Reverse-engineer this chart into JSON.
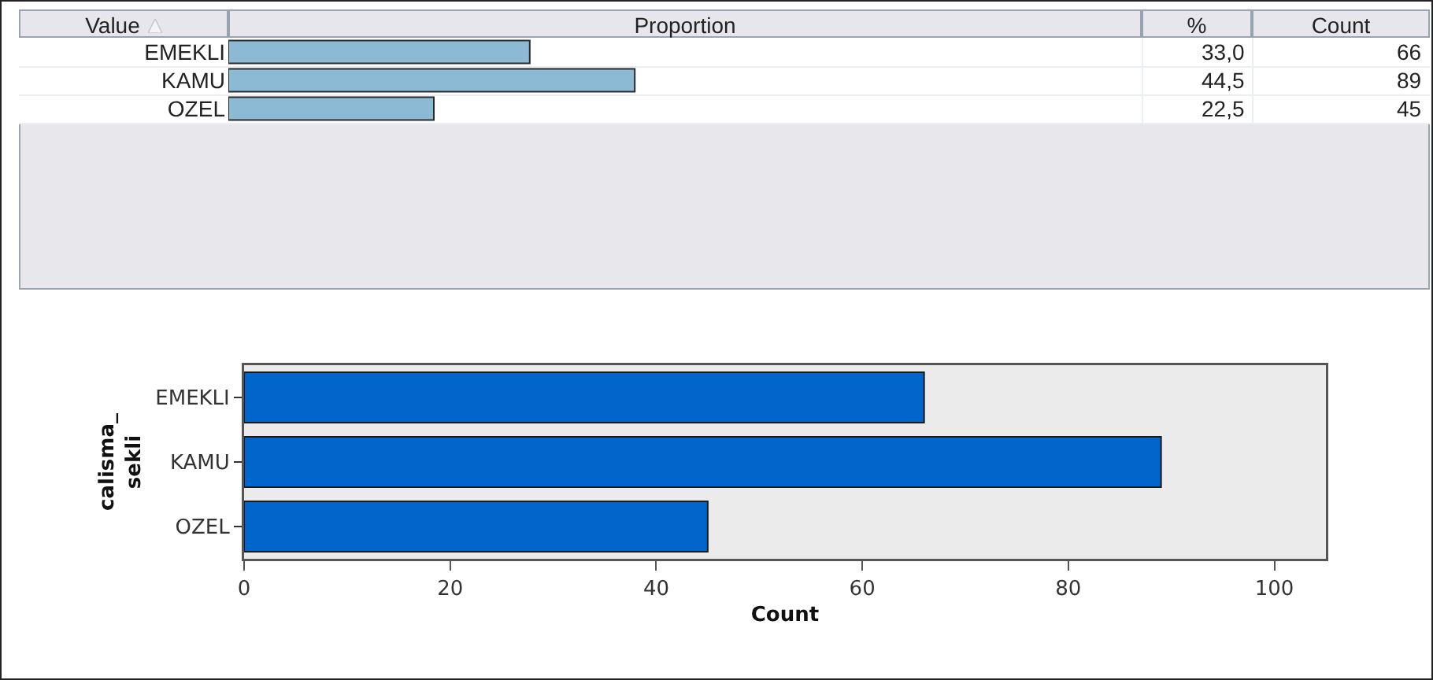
{
  "chart_data": [
    {
      "type": "bar",
      "orientation": "horizontal",
      "ylabel": "Value",
      "xlabel": "Proportion",
      "categories": [
        "EMEKLI",
        "KAMU",
        "OZEL"
      ],
      "xlim": [
        0,
        100
      ],
      "tick_labels": "y",
      "grid": false,
      "legend": false,
      "series": [
        {
          "name": "%",
          "color": "#8cbad4",
          "values": [
            33.0,
            44.5,
            22.5
          ],
          "value_labels": [
            "33,0",
            "44,5",
            "22,5"
          ]
        }
      ],
      "annotations": [
        "Count",
        "66",
        "89",
        "45"
      ]
    },
    {
      "type": "bar",
      "orientation": "horizontal",
      "xlabel": "Count",
      "ylabel": "calisma_\nsekli",
      "categories": [
        "EMEKLI",
        "KAMU",
        "OZEL"
      ],
      "xlim": [
        0,
        105
      ],
      "xticks": [
        0,
        20,
        40,
        60,
        80,
        100
      ],
      "grid": false,
      "legend": false,
      "series": [
        {
          "color": "#0066cc",
          "values": [
            66,
            89,
            45
          ]
        }
      ]
    }
  ]
}
